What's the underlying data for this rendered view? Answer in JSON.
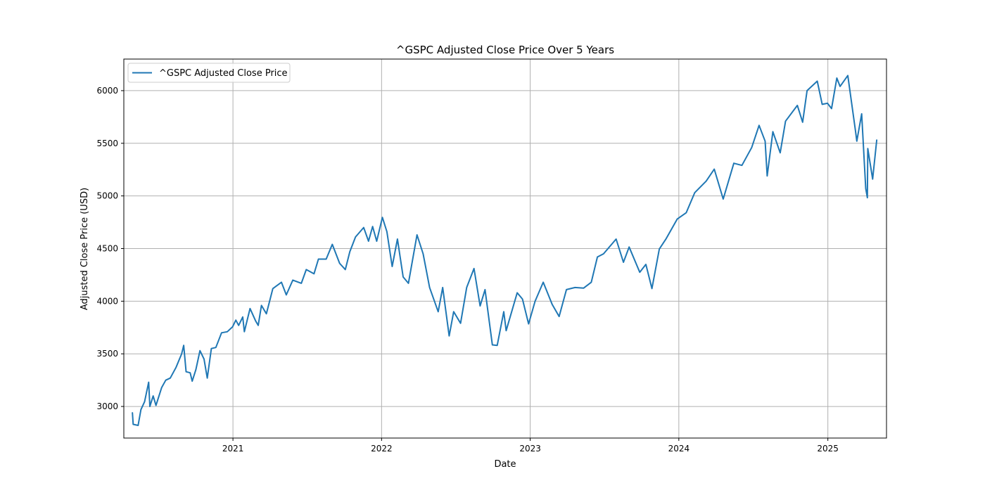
{
  "colors": {
    "line": "#1f77b4",
    "grid": "#b0b0b0",
    "axis": "#000000",
    "legend_border": "#cccccc"
  },
  "chart_data": {
    "type": "line",
    "title": "^GSPC Adjusted Close Price Over 5 Years",
    "xlabel": "Date",
    "ylabel": "Adjusted Close Price (USD)",
    "grid": true,
    "legend_placement": "top-left",
    "xlim": [
      "2020-04-08",
      "2025-05-25"
    ],
    "ylim": [
      2700,
      6300
    ],
    "x_ticks": [
      {
        "date": "2021-01-01",
        "label": "2021"
      },
      {
        "date": "2022-01-01",
        "label": "2022"
      },
      {
        "date": "2023-01-01",
        "label": "2023"
      },
      {
        "date": "2024-01-01",
        "label": "2024"
      },
      {
        "date": "2025-01-01",
        "label": "2025"
      }
    ],
    "y_ticks": [
      3000,
      3500,
      4000,
      4500,
      5000,
      5500,
      6000
    ],
    "series": [
      {
        "name": "^GSPC Adjusted Close Price",
        "points": [
          [
            "2020-04-29",
            2940
          ],
          [
            "2020-05-01",
            2830
          ],
          [
            "2020-05-13",
            2820
          ],
          [
            "2020-05-20",
            2970
          ],
          [
            "2020-05-29",
            3045
          ],
          [
            "2020-06-08",
            3230
          ],
          [
            "2020-06-11",
            3000
          ],
          [
            "2020-06-19",
            3100
          ],
          [
            "2020-06-26",
            3010
          ],
          [
            "2020-07-10",
            3180
          ],
          [
            "2020-07-20",
            3250
          ],
          [
            "2020-07-31",
            3270
          ],
          [
            "2020-08-14",
            3370
          ],
          [
            "2020-08-28",
            3500
          ],
          [
            "2020-09-02",
            3580
          ],
          [
            "2020-09-08",
            3330
          ],
          [
            "2020-09-18",
            3320
          ],
          [
            "2020-09-23",
            3240
          ],
          [
            "2020-10-02",
            3350
          ],
          [
            "2020-10-12",
            3530
          ],
          [
            "2020-10-22",
            3450
          ],
          [
            "2020-10-30",
            3270
          ],
          [
            "2020-11-09",
            3550
          ],
          [
            "2020-11-20",
            3560
          ],
          [
            "2020-12-04",
            3700
          ],
          [
            "2020-12-18",
            3710
          ],
          [
            "2020-12-31",
            3756
          ],
          [
            "2021-01-08",
            3820
          ],
          [
            "2021-01-15",
            3770
          ],
          [
            "2021-01-25",
            3850
          ],
          [
            "2021-01-29",
            3710
          ],
          [
            "2021-02-12",
            3930
          ],
          [
            "2021-02-26",
            3810
          ],
          [
            "2021-03-04",
            3770
          ],
          [
            "2021-03-12",
            3960
          ],
          [
            "2021-03-24",
            3880
          ],
          [
            "2021-04-09",
            4120
          ],
          [
            "2021-04-30",
            4180
          ],
          [
            "2021-05-12",
            4060
          ],
          [
            "2021-05-28",
            4200
          ],
          [
            "2021-06-18",
            4170
          ],
          [
            "2021-06-30",
            4300
          ],
          [
            "2021-07-19",
            4260
          ],
          [
            "2021-07-30",
            4400
          ],
          [
            "2021-08-18",
            4400
          ],
          [
            "2021-09-02",
            4540
          ],
          [
            "2021-09-20",
            4360
          ],
          [
            "2021-10-04",
            4300
          ],
          [
            "2021-10-15",
            4470
          ],
          [
            "2021-10-29",
            4610
          ],
          [
            "2021-11-18",
            4700
          ],
          [
            "2021-11-30",
            4570
          ],
          [
            "2021-12-10",
            4710
          ],
          [
            "2021-12-20",
            4570
          ],
          [
            "2022-01-03",
            4796
          ],
          [
            "2022-01-14",
            4660
          ],
          [
            "2022-01-27",
            4330
          ],
          [
            "2022-02-09",
            4590
          ],
          [
            "2022-02-23",
            4230
          ],
          [
            "2022-03-08",
            4170
          ],
          [
            "2022-03-29",
            4630
          ],
          [
            "2022-04-13",
            4450
          ],
          [
            "2022-04-29",
            4130
          ],
          [
            "2022-05-20",
            3900
          ],
          [
            "2022-05-31",
            4130
          ],
          [
            "2022-06-16",
            3670
          ],
          [
            "2022-06-27",
            3900
          ],
          [
            "2022-07-14",
            3790
          ],
          [
            "2022-07-29",
            4130
          ],
          [
            "2022-08-16",
            4310
          ],
          [
            "2022-08-31",
            3955
          ],
          [
            "2022-09-12",
            4110
          ],
          [
            "2022-09-30",
            3585
          ],
          [
            "2022-10-12",
            3580
          ],
          [
            "2022-10-28",
            3900
          ],
          [
            "2022-11-03",
            3720
          ],
          [
            "2022-11-30",
            4080
          ],
          [
            "2022-12-13",
            4020
          ],
          [
            "2022-12-28",
            3785
          ],
          [
            "2023-01-13",
            3999
          ],
          [
            "2023-02-02",
            4180
          ],
          [
            "2023-02-24",
            3970
          ],
          [
            "2023-03-13",
            3855
          ],
          [
            "2023-03-31",
            4110
          ],
          [
            "2023-04-21",
            4130
          ],
          [
            "2023-05-12",
            4124
          ],
          [
            "2023-05-31",
            4180
          ],
          [
            "2023-06-15",
            4420
          ],
          [
            "2023-06-30",
            4450
          ],
          [
            "2023-07-31",
            4590
          ],
          [
            "2023-08-18",
            4370
          ],
          [
            "2023-09-01",
            4515
          ],
          [
            "2023-09-27",
            4275
          ],
          [
            "2023-10-12",
            4350
          ],
          [
            "2023-10-27",
            4120
          ],
          [
            "2023-11-14",
            4495
          ],
          [
            "2023-12-01",
            4595
          ],
          [
            "2023-12-28",
            4780
          ],
          [
            "2024-01-19",
            4840
          ],
          [
            "2024-02-09",
            5030
          ],
          [
            "2024-03-08",
            5140
          ],
          [
            "2024-03-28",
            5254
          ],
          [
            "2024-04-19",
            4970
          ],
          [
            "2024-05-15",
            5310
          ],
          [
            "2024-06-04",
            5290
          ],
          [
            "2024-06-28",
            5460
          ],
          [
            "2024-07-16",
            5670
          ],
          [
            "2024-07-31",
            5520
          ],
          [
            "2024-08-05",
            5190
          ],
          [
            "2024-08-19",
            5610
          ],
          [
            "2024-09-06",
            5410
          ],
          [
            "2024-09-19",
            5710
          ],
          [
            "2024-10-18",
            5860
          ],
          [
            "2024-10-31",
            5700
          ],
          [
            "2024-11-11",
            6000
          ],
          [
            "2024-12-06",
            6090
          ],
          [
            "2024-12-18",
            5870
          ],
          [
            "2024-12-31",
            5880
          ],
          [
            "2025-01-10",
            5830
          ],
          [
            "2025-01-23",
            6120
          ],
          [
            "2025-01-31",
            6040
          ],
          [
            "2025-02-19",
            6144
          ],
          [
            "2025-03-10",
            5614
          ],
          [
            "2025-03-13",
            5520
          ],
          [
            "2025-03-25",
            5780
          ],
          [
            "2025-04-04",
            5070
          ],
          [
            "2025-04-08",
            4983
          ],
          [
            "2025-04-09",
            5450
          ],
          [
            "2025-04-21",
            5160
          ],
          [
            "2025-05-01",
            5530
          ]
        ]
      }
    ]
  }
}
